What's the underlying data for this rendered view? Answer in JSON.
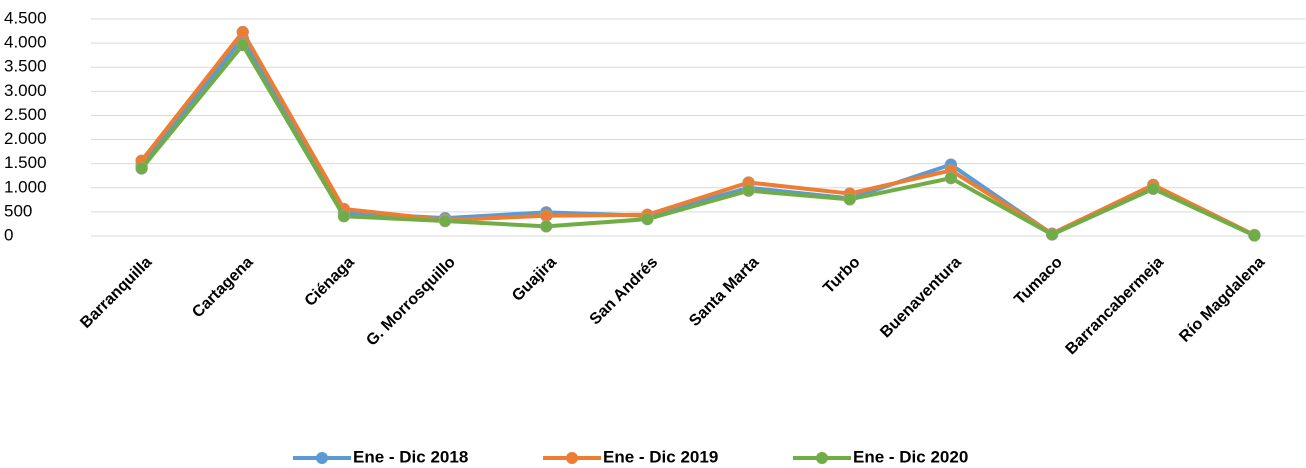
{
  "chart_data": {
    "type": "line",
    "categories": [
      "Barranquilla",
      "Cartagena",
      "Ciénaga",
      "G. Morrosquillo",
      "Guajira",
      "San Andrés",
      "Santa Marta",
      "Turbo",
      "Buenaventura",
      "Tumaco",
      "Barrancabermeja",
      "Río Magdalena"
    ],
    "series": [
      {
        "name": "Ene - Dic 2018",
        "color": "#5b9bd5",
        "values": [
          1450,
          4100,
          480,
          370,
          490,
          420,
          1000,
          780,
          1480,
          40,
          980,
          20
        ]
      },
      {
        "name": "Ene - Dic 2019",
        "color": "#ed7d31",
        "values": [
          1560,
          4230,
          560,
          330,
          420,
          440,
          1110,
          880,
          1360,
          50,
          1060,
          20
        ]
      },
      {
        "name": "Ene -  Dic 2020",
        "color": "#70ad47",
        "values": [
          1400,
          3960,
          410,
          310,
          200,
          350,
          940,
          760,
          1200,
          30,
          980,
          10
        ]
      }
    ],
    "ylim": [
      0,
      4500
    ],
    "yticks": [
      0,
      500,
      {
        "value": 1000,
        "label": "1.000"
      },
      {
        "value": 1500,
        "label": "1.500"
      },
      {
        "value": 2000,
        "label": "2.000"
      },
      {
        "value": 2500,
        "label": "2.500"
      },
      {
        "value": 3000,
        "label": "3.000"
      },
      {
        "value": 3500,
        "label": "3.500"
      },
      {
        "value": 4000,
        "label": "4.000"
      },
      {
        "value": 4500,
        "label": "4.500"
      }
    ],
    "grid": true,
    "legend": "bottom"
  }
}
